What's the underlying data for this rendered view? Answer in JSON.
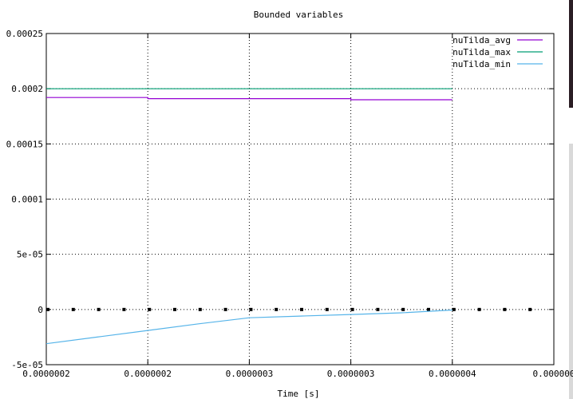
{
  "chart_data": {
    "type": "line",
    "title": "Bounded variables",
    "xlabel": "Time [s]",
    "ylabel": "",
    "x_tick_labels": [
      "0.0000002",
      "0.0000002",
      "0.0000003",
      "0.0000003",
      "0.0000004",
      "0.000000"
    ],
    "y_ticks": [
      -5e-05,
      0,
      5e-05,
      0.0001,
      0.00015,
      0.0002,
      0.00025
    ],
    "y_tick_labels": [
      "-5e-05",
      "0",
      "5e-05",
      "0.0001",
      "0.00015",
      "0.0002",
      "0.00025"
    ],
    "ylim": [
      -5e-05,
      0.00025
    ],
    "grid": true,
    "legend_position": "top-right",
    "series": [
      {
        "name": "nuTilda_avg",
        "color": "#9400d3",
        "points": [
          [
            0,
            0.000192
          ],
          [
            1,
            0.000192
          ],
          [
            1,
            0.000191
          ],
          [
            3,
            0.000191
          ],
          [
            3,
            0.00019
          ],
          [
            4,
            0.00019
          ]
        ]
      },
      {
        "name": "nuTilda_max",
        "color": "#009e73",
        "points": [
          [
            0,
            0.0002
          ],
          [
            4,
            0.0002
          ]
        ]
      },
      {
        "name": "nuTilda_min",
        "color": "#56b4e9",
        "points": [
          [
            0,
            -3.1e-05
          ],
          [
            0.5,
            -2.5e-05
          ],
          [
            1,
            -1.9e-05
          ],
          [
            1.5,
            -1.3e-05
          ],
          [
            2,
            -7.5e-06
          ],
          [
            2.5,
            -6e-06
          ],
          [
            3,
            -4.5e-06
          ],
          [
            3.5,
            -3e-06
          ],
          [
            4,
            -5e-07
          ]
        ]
      }
    ]
  }
}
